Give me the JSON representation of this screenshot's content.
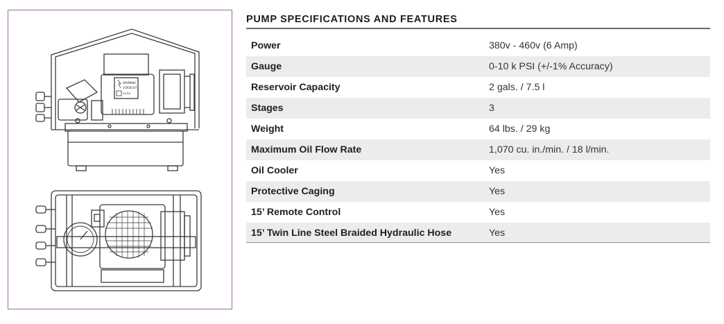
{
  "spec_section": {
    "title": "PUMP SPECIFICATIONS AND FEATURES",
    "rows": [
      {
        "label": "Power",
        "value": "380v - 460v (6 Amp)"
      },
      {
        "label": "Gauge",
        "value": "0-10 k PSI (+/-1% Accuracy)"
      },
      {
        "label": "Reservoir Capacity",
        "value": "2 gals. / 7.5 l"
      },
      {
        "label": "Stages",
        "value": "3"
      },
      {
        "label": "Weight",
        "value": "64 lbs. / 29 kg"
      },
      {
        "label": "Maximum Oil Flow Rate",
        "value": "1,070 cu. in./min. / 18 l/min."
      },
      {
        "label": "Oil Cooler",
        "value": "Yes"
      },
      {
        "label": "Protective Caging",
        "value": "Yes"
      },
      {
        "label": "15’ Remote Control",
        "value": "Yes"
      },
      {
        "label": "15’ Twin Line Steel Braided Hydraulic Hose",
        "value": "Yes"
      }
    ]
  },
  "figure": {
    "frame_color": "#a06aa8",
    "views": [
      "pump-side-view",
      "pump-top-view"
    ],
    "warning_label": {
      "line1": "WARNING",
      "line2": "VORSICHT",
      "line3": "no Ex"
    }
  }
}
